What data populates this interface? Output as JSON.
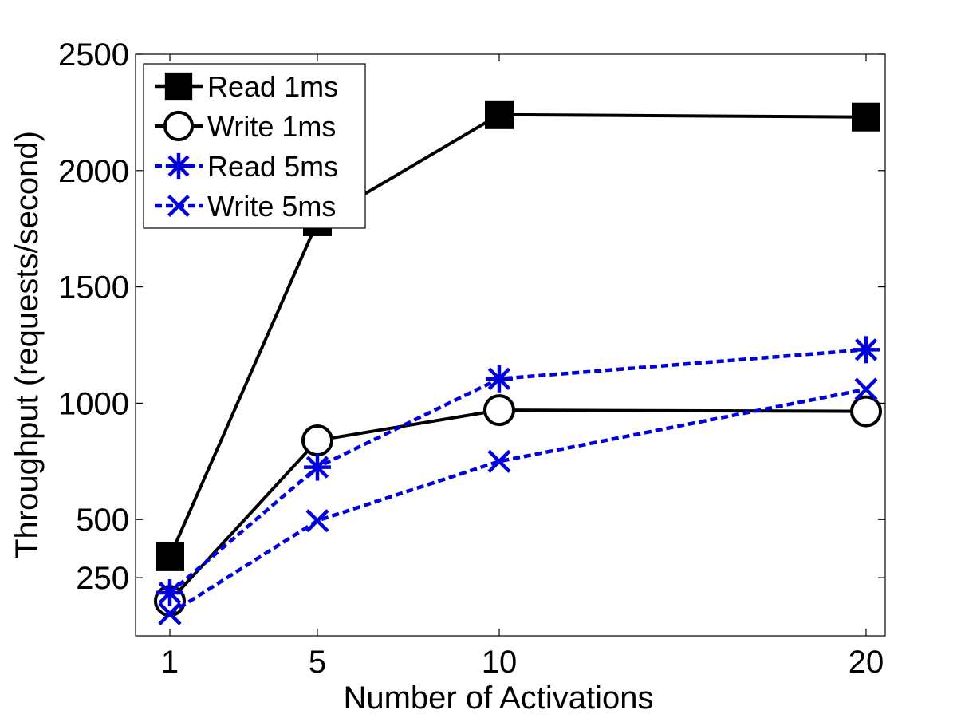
{
  "chart_data": {
    "type": "line",
    "title": "",
    "xlabel": "Number of Activations",
    "ylabel": "Throughput (requests/second)",
    "x": [
      1,
      5,
      10,
      20
    ],
    "x_ticks": [
      "1",
      "5",
      "10",
      "20"
    ],
    "y_ticks": [
      "250",
      "500",
      "1000",
      "1500",
      "2000",
      "2500"
    ],
    "y_tick_values": [
      250,
      500,
      1000,
      1500,
      2000,
      2500
    ],
    "xlim": [
      0,
      20.5
    ],
    "ylim": [
      0,
      2500
    ],
    "grid": false,
    "legend_position": "top-left",
    "series": [
      {
        "name": "Read 1ms",
        "values": [
          340,
          1780,
          2240,
          2230
        ],
        "color": "#000000",
        "line": "solid",
        "marker": "square"
      },
      {
        "name": "Write 1ms",
        "values": [
          150,
          840,
          970,
          965
        ],
        "color": "#000000",
        "line": "solid",
        "marker": "circle"
      },
      {
        "name": "Read 5ms",
        "values": [
          185,
          725,
          1105,
          1230
        ],
        "color": "#0000dd",
        "line": "dashed",
        "marker": "asterisk"
      },
      {
        "name": "Write 5ms",
        "values": [
          95,
          495,
          750,
          1060
        ],
        "color": "#0000dd",
        "line": "dashed",
        "marker": "x"
      }
    ]
  }
}
